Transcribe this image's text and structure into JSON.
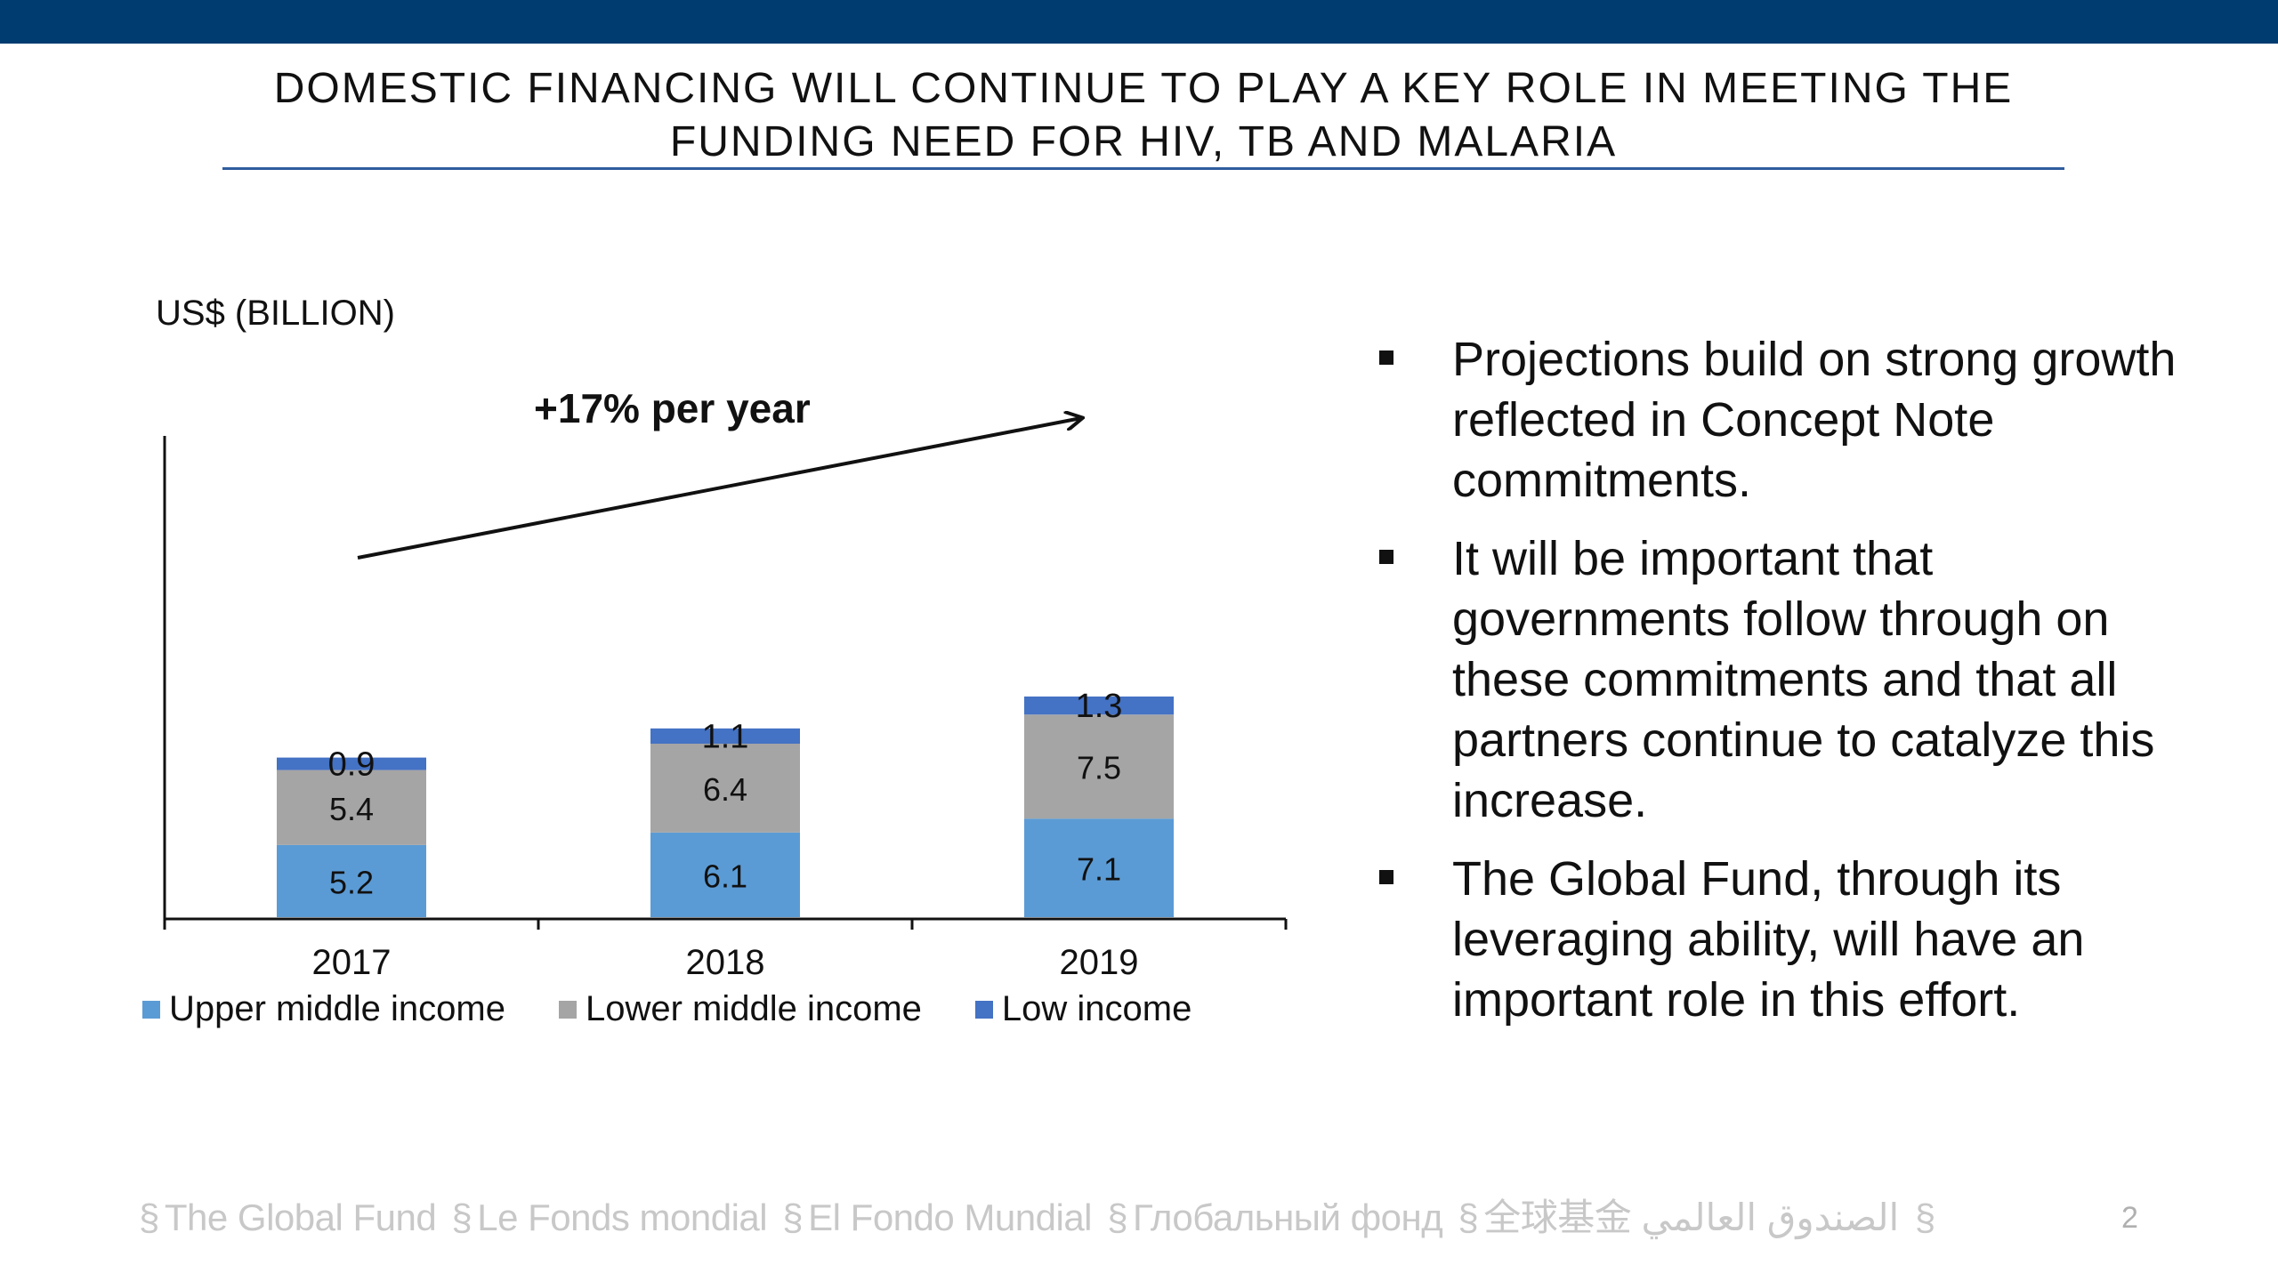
{
  "slide": {
    "title": "DOMESTIC FINANCING WILL CONTINUE TO PLAY A KEY ROLE IN MEETING THE FUNDING NEED FOR HIV, TB AND MALARIA",
    "page_number": "2"
  },
  "chart_data": {
    "type": "bar",
    "stacked": true,
    "ylabel": "US$ (BILLION)",
    "annotation": "+17% per year",
    "categories": [
      "2017",
      "2018",
      "2019"
    ],
    "series": [
      {
        "name": "Upper middle income",
        "values": [
          5.2,
          6.1,
          7.1
        ],
        "color": "#5B9BD5"
      },
      {
        "name": "Lower middle income",
        "values": [
          5.4,
          6.4,
          7.5
        ],
        "color": "#A5A5A5"
      },
      {
        "name": "Low income",
        "values": [
          0.9,
          1.1,
          1.3
        ],
        "color": "#4472C4"
      }
    ],
    "legend_position": "bottom",
    "grid": false
  },
  "bullets": [
    "Projections build on strong growth reflected in Concept Note commitments.",
    "It will be important that governments follow through on these commitments and that all partners continue to catalyze this increase.",
    "The Global Fund, through its leveraging ability, will have an important role in this effort."
  ],
  "footer": {
    "names": [
      "The Global Fund",
      "Le Fonds mondial",
      "El Fondo Mundial",
      "Глобальный фонд",
      "全球基金",
      "الصندوق العالمي"
    ]
  }
}
